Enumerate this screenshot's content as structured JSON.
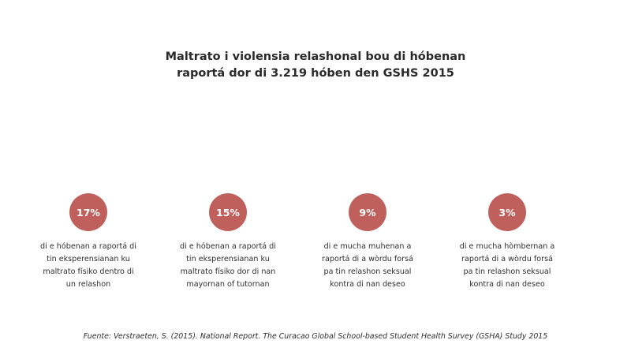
{
  "title": {
    "line1": "Maltrato i violensia relashonal bou di hóbenan",
    "line2": "raportá dor di 3.219 hóben den GSHS 2015"
  },
  "stats": [
    {
      "value": "17%",
      "lines": [
        "di e hóbenan a raportá di",
        "tin eksperensianan ku",
        "maltrato físiko dentro di",
        "un relashon"
      ]
    },
    {
      "value": "15%",
      "lines": [
        "di e hóbenan a raportá di",
        "tin eksperensianan ku",
        "maltrato físiko dor di nan",
        "mayornan of tutornan"
      ]
    },
    {
      "value": "9%",
      "lines": [
        "di e mucha muhenan a",
        "raportá di a wòrdu forsá",
        "pa tin relashon seksual",
        "kontra di nan deseo"
      ]
    },
    {
      "value": "3%",
      "lines": [
        "di e mucha hòmbernan a",
        "raportá di a wòrdu forsá",
        "pa tin relashon seksual",
        "kontra di nan deseo"
      ]
    }
  ],
  "source": "Fuente: Verstraeten, S. (2015). National Report. The Curacao Global School-based Student Health Survey (GSHA) Study 2015",
  "colors": {
    "circle": "#c0605d",
    "text": "#2e2e2e",
    "background": "#ffffff"
  }
}
